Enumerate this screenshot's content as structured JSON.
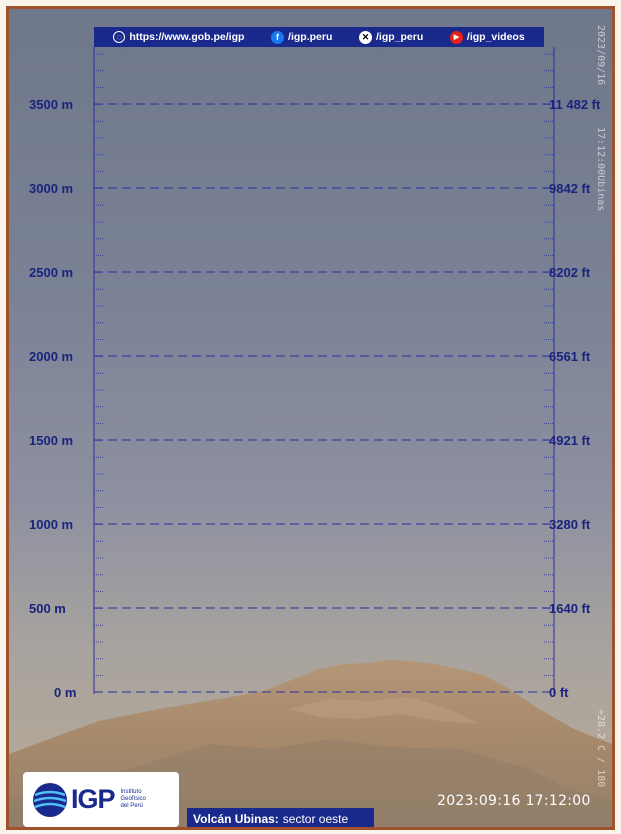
{
  "banner": {
    "website": "https://www.gob.pe/igp",
    "facebook": "/igp.peru",
    "x": "/igp_peru",
    "youtube": "/igp_videos"
  },
  "scale": {
    "meters": [
      "3500 m",
      "3000 m",
      "2500 m",
      "2000 m",
      "1500 m",
      "1000 m",
      "500 m",
      "0 m"
    ],
    "feet": [
      "11 482 ft",
      "9842 ft",
      "8202 ft",
      "6561 ft",
      "4921 ft",
      "3280 ft",
      "1640 ft",
      "0 ft"
    ]
  },
  "watermark": {
    "date_vertical": "2023/09/16",
    "time_vertical": "17:12:00Ubinas",
    "temp_vertical": "+28.2 C / 180",
    "timestamp": "2023:09:16 17:12:00"
  },
  "logo": {
    "name": "IGP",
    "subtitle": [
      "Instituto",
      "Geofísico",
      "del Perú"
    ]
  },
  "caption": {
    "volcano": "Volcán Ubinas:",
    "sector": "sector oeste"
  },
  "colors": {
    "frame": "#a0522d",
    "banner": "#1a2a8c",
    "scale": "#1a237e"
  }
}
